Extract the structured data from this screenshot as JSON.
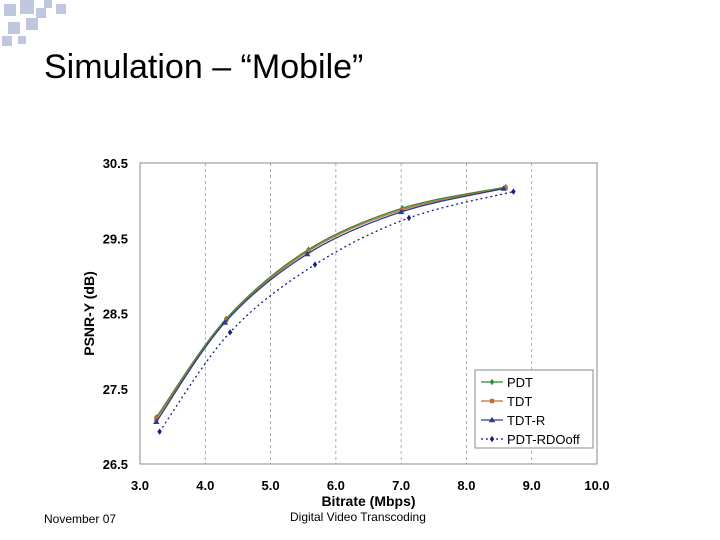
{
  "slide": {
    "title": "Simulation – “Mobile”",
    "footer_left": "November 07",
    "footer_center": "Digital Video Transcoding"
  },
  "colors": {
    "deco_squares": "#c0c8e0",
    "grid": "#999999",
    "pdt": "#2e8b2e",
    "tdt": "#c0703a",
    "tdtr": "#2a3c8c",
    "rdo": "#1a1a8a"
  },
  "chart_data": {
    "type": "line",
    "title": "",
    "xlabel": "Bitrate (Mbps)",
    "ylabel": "PSNR-Y (dB)",
    "xlim": [
      3.0,
      10.0
    ],
    "ylim": [
      26.5,
      30.5
    ],
    "xticks": [
      "3.0",
      "4.0",
      "5.0",
      "6.0",
      "7.0",
      "8.0",
      "9.0",
      "10.0"
    ],
    "yticks": [
      "30.5",
      "29.5",
      "28.5",
      "27.5",
      "26.5"
    ],
    "grid": "vertical-dashed",
    "legend_position": "bottom-right",
    "series": [
      {
        "name": "PDT",
        "x": [
          3.25,
          4.32,
          5.58,
          7.02,
          8.6
        ],
        "y": [
          27.12,
          28.43,
          29.35,
          29.9,
          30.18
        ]
      },
      {
        "name": "TDT",
        "x": [
          3.25,
          4.32,
          5.58,
          7.02,
          8.6
        ],
        "y": [
          27.1,
          28.41,
          29.33,
          29.88,
          30.17
        ]
      },
      {
        "name": "TDT-R",
        "x": [
          3.25,
          4.3,
          5.56,
          7.0,
          8.57
        ],
        "y": [
          27.06,
          28.38,
          29.29,
          29.85,
          30.16
        ]
      },
      {
        "name": "PDT-RDOoff",
        "x": [
          3.3,
          4.38,
          5.68,
          7.12,
          8.72
        ],
        "y": [
          26.93,
          28.25,
          29.15,
          29.77,
          30.12
        ]
      }
    ]
  }
}
